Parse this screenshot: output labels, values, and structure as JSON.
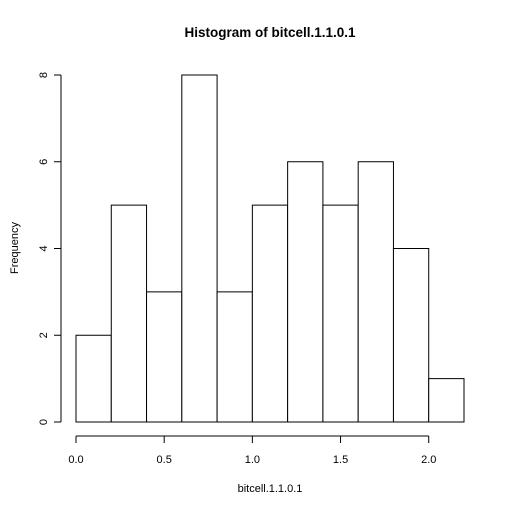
{
  "chart_data": {
    "type": "bar",
    "title": "Histogram of bitcell.1.1.0.1",
    "xlabel": "bitcell.1.1.0.1",
    "ylabel": "Frequency",
    "bins": [
      {
        "from": 0.0,
        "to": 0.2,
        "count": 2
      },
      {
        "from": 0.2,
        "to": 0.4,
        "count": 5
      },
      {
        "from": 0.4,
        "to": 0.6,
        "count": 3
      },
      {
        "from": 0.6,
        "to": 0.8,
        "count": 8
      },
      {
        "from": 0.8,
        "to": 1.0,
        "count": 3
      },
      {
        "from": 1.0,
        "to": 1.2,
        "count": 5
      },
      {
        "from": 1.2,
        "to": 1.4,
        "count": 6
      },
      {
        "from": 1.4,
        "to": 1.6,
        "count": 5
      },
      {
        "from": 1.6,
        "to": 1.8,
        "count": 6
      },
      {
        "from": 1.8,
        "to": 2.0,
        "count": 4
      },
      {
        "from": 2.0,
        "to": 2.2,
        "count": 1
      }
    ],
    "xlim": [
      0.0,
      2.2
    ],
    "ylim": [
      0,
      8
    ],
    "x_ticks": [
      0.0,
      0.5,
      1.0,
      1.5,
      2.0
    ],
    "x_tick_labels": [
      "0.0",
      "0.5",
      "1.0",
      "1.5",
      "2.0"
    ],
    "y_ticks": [
      0,
      2,
      4,
      6,
      8
    ],
    "y_tick_labels": [
      "0",
      "2",
      "4",
      "6",
      "8"
    ],
    "grid": false,
    "colors": {
      "bar_fill": "#ffffff",
      "bar_stroke": "#000000",
      "axis": "#000000"
    }
  }
}
